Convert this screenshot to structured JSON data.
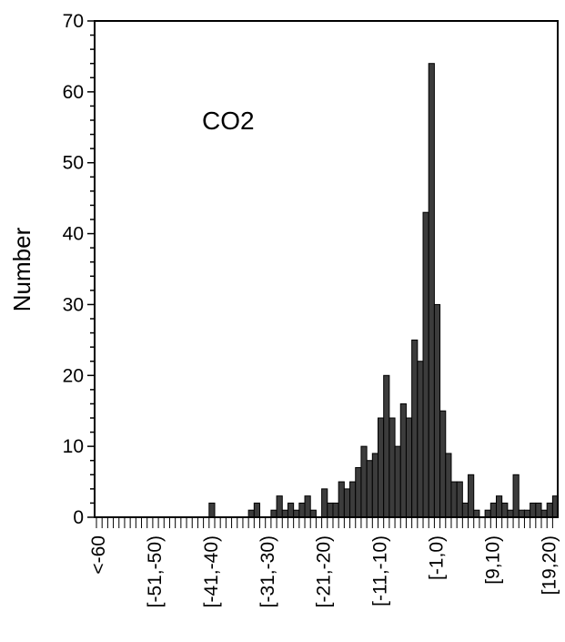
{
  "chart_data": {
    "type": "bar",
    "annotation": "CO2",
    "xlabel": "",
    "ylabel": "Number",
    "ylim": [
      0,
      70
    ],
    "yticks": [
      0,
      10,
      20,
      30,
      40,
      50,
      60,
      70
    ],
    "grid": false,
    "x_tick_labels": [
      {
        "bin": 0,
        "label": "<-60"
      },
      {
        "bin": 10,
        "label": "[-51,-50)"
      },
      {
        "bin": 20,
        "label": "[-41,-40)"
      },
      {
        "bin": 30,
        "label": "[-31,-30)"
      },
      {
        "bin": 40,
        "label": "[-21,-20)"
      },
      {
        "bin": 50,
        "label": "[-11,-10)"
      },
      {
        "bin": 60,
        "label": "[-1,0)"
      },
      {
        "bin": 70,
        "label": "[9,10)"
      },
      {
        "bin": 80,
        "label": "[19,20)"
      }
    ],
    "values": [
      0,
      0,
      0,
      0,
      0,
      0,
      0,
      0,
      0,
      0,
      0,
      0,
      0,
      0,
      0,
      0,
      0,
      0,
      0,
      0,
      2,
      0,
      0,
      0,
      0,
      0,
      0,
      1,
      2,
      0,
      0,
      1,
      3,
      1,
      2,
      1,
      2,
      3,
      1,
      0,
      4,
      2,
      2,
      5,
      4,
      5,
      7,
      10,
      8,
      9,
      14,
      20,
      14,
      10,
      16,
      14,
      25,
      22,
      43,
      64,
      30,
      15,
      9,
      5,
      5,
      2,
      6,
      1,
      0,
      1,
      2,
      3,
      2,
      1,
      6,
      1,
      1,
      2,
      2,
      1,
      2,
      3
    ]
  }
}
